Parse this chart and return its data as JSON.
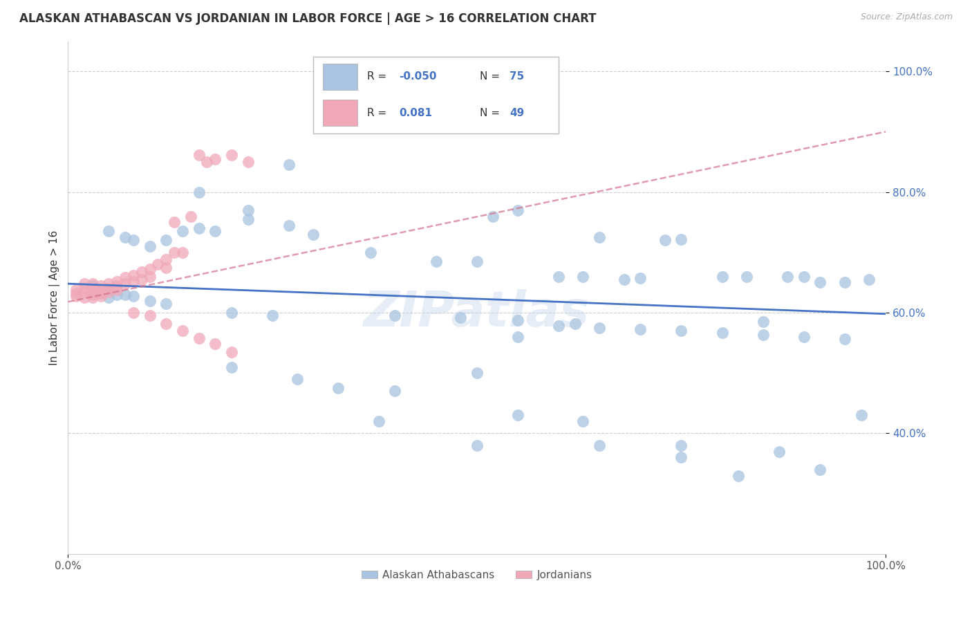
{
  "title": "ALASKAN ATHABASCAN VS JORDANIAN IN LABOR FORCE | AGE > 16 CORRELATION CHART",
  "source_text": "Source: ZipAtlas.com",
  "ylabel": "In Labor Force | Age > 16",
  "legend_labels": [
    "Alaskan Athabascans",
    "Jordanians"
  ],
  "color_blue": "#a8c4e0",
  "color_pink": "#f0a8b8",
  "line_blue": "#4472c4",
  "line_pink": "#d4708a",
  "r_color": "#4472c4",
  "watermark": "ZIPatlas",
  "blue_scatter_x": [
    0.27,
    0.16,
    0.22,
    0.22,
    0.27,
    0.3,
    0.05,
    0.07,
    0.08,
    0.1,
    0.12,
    0.14,
    0.16,
    0.18,
    0.37,
    0.45,
    0.5,
    0.52,
    0.55,
    0.6,
    0.63,
    0.65,
    0.68,
    0.7,
    0.73,
    0.75,
    0.8,
    0.83,
    0.85,
    0.88,
    0.9,
    0.92,
    0.95,
    0.98,
    0.03,
    0.04,
    0.05,
    0.05,
    0.06,
    0.07,
    0.08,
    0.1,
    0.12,
    0.2,
    0.25,
    0.4,
    0.48,
    0.55,
    0.62,
    0.5,
    0.55,
    0.6,
    0.65,
    0.7,
    0.75,
    0.8,
    0.85,
    0.9,
    0.95,
    0.33,
    0.4,
    0.55,
    0.65,
    0.75,
    0.82,
    0.87,
    0.92,
    0.97,
    0.2,
    0.28,
    0.38,
    0.5,
    0.63,
    0.75
  ],
  "blue_scatter_y": [
    0.845,
    0.8,
    0.77,
    0.755,
    0.745,
    0.73,
    0.735,
    0.725,
    0.72,
    0.71,
    0.72,
    0.735,
    0.74,
    0.735,
    0.7,
    0.685,
    0.685,
    0.76,
    0.77,
    0.66,
    0.66,
    0.725,
    0.655,
    0.657,
    0.72,
    0.722,
    0.66,
    0.66,
    0.585,
    0.66,
    0.66,
    0.65,
    0.65,
    0.655,
    0.645,
    0.635,
    0.638,
    0.625,
    0.63,
    0.63,
    0.627,
    0.62,
    0.615,
    0.6,
    0.595,
    0.595,
    0.592,
    0.588,
    0.582,
    0.5,
    0.56,
    0.578,
    0.575,
    0.572,
    0.57,
    0.567,
    0.563,
    0.56,
    0.557,
    0.475,
    0.47,
    0.43,
    0.38,
    0.38,
    0.33,
    0.37,
    0.34,
    0.43,
    0.51,
    0.49,
    0.42,
    0.38,
    0.42,
    0.36
  ],
  "pink_scatter_x": [
    0.01,
    0.01,
    0.01,
    0.02,
    0.02,
    0.02,
    0.02,
    0.03,
    0.03,
    0.03,
    0.03,
    0.03,
    0.04,
    0.04,
    0.04,
    0.04,
    0.05,
    0.05,
    0.05,
    0.06,
    0.06,
    0.06,
    0.07,
    0.07,
    0.08,
    0.08,
    0.09,
    0.09,
    0.1,
    0.1,
    0.11,
    0.12,
    0.12,
    0.13,
    0.13,
    0.14,
    0.15,
    0.16,
    0.17,
    0.18,
    0.2,
    0.22,
    0.08,
    0.1,
    0.12,
    0.14,
    0.16,
    0.18,
    0.2
  ],
  "pink_scatter_y": [
    0.638,
    0.632,
    0.628,
    0.648,
    0.64,
    0.635,
    0.625,
    0.648,
    0.64,
    0.635,
    0.63,
    0.625,
    0.645,
    0.638,
    0.632,
    0.628,
    0.648,
    0.64,
    0.635,
    0.652,
    0.645,
    0.638,
    0.658,
    0.648,
    0.662,
    0.652,
    0.668,
    0.655,
    0.672,
    0.66,
    0.68,
    0.688,
    0.675,
    0.75,
    0.7,
    0.7,
    0.76,
    0.862,
    0.85,
    0.855,
    0.862,
    0.85,
    0.6,
    0.595,
    0.582,
    0.57,
    0.558,
    0.548,
    0.535
  ],
  "blue_trend_x": [
    0.0,
    1.0
  ],
  "blue_trend_y": [
    0.648,
    0.598
  ],
  "pink_trend_x": [
    0.0,
    1.0
  ],
  "pink_trend_y": [
    0.618,
    0.9
  ],
  "xlim": [
    0.0,
    1.0
  ],
  "ylim": [
    0.2,
    1.05
  ],
  "y_ticks": [
    0.4,
    0.6,
    0.8,
    1.0
  ],
  "x_ticks": [
    0.0,
    1.0
  ],
  "x_tick_labels": [
    "0.0%",
    "100.0%"
  ],
  "figsize": [
    14.06,
    8.92
  ],
  "dpi": 100
}
